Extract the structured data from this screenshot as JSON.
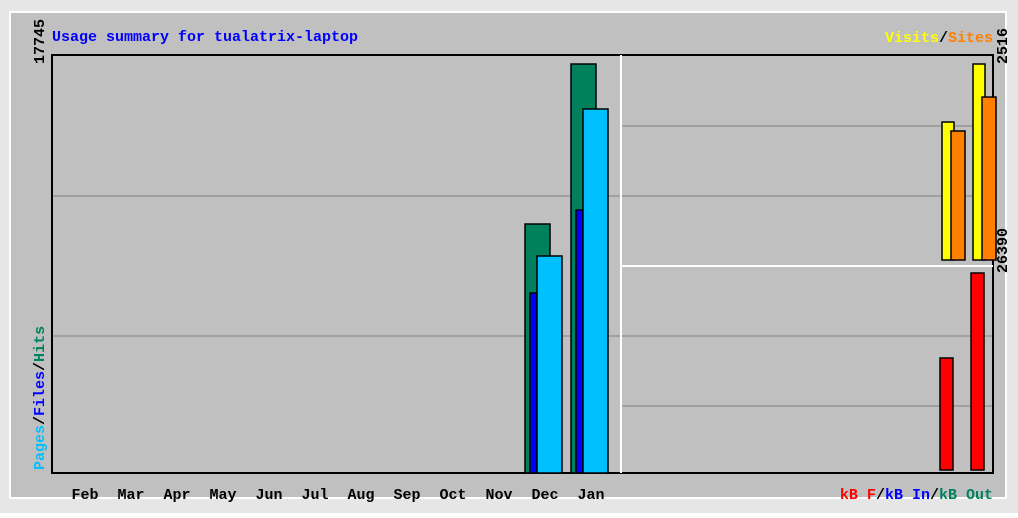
{
  "chart_data": [
    {
      "type": "bar",
      "title": "Usage summary for tualatrix-laptop",
      "categories": [
        "Feb",
        "Mar",
        "Apr",
        "May",
        "Jun",
        "Jul",
        "Aug",
        "Sep",
        "Oct",
        "Nov",
        "Dec",
        "Jan"
      ],
      "ylim": [
        0,
        17745
      ],
      "yticks": [
        17745
      ],
      "series": [
        {
          "name": "Hits",
          "color": "#00805c",
          "values": [
            0,
            0,
            0,
            0,
            0,
            0,
            0,
            0,
            0,
            0,
            10803,
            17745
          ]
        },
        {
          "name": "Files",
          "color": "#0000ff",
          "values": [
            0,
            0,
            0,
            0,
            0,
            0,
            0,
            0,
            0,
            0,
            7810,
            11411
          ]
        },
        {
          "name": "Pages",
          "color": "#00c0ff",
          "values": [
            0,
            0,
            0,
            0,
            0,
            0,
            0,
            0,
            0,
            0,
            9415,
            15793
          ]
        }
      ]
    },
    {
      "type": "bar",
      "ylim": [
        0,
        2516
      ],
      "yticks": [
        2516
      ],
      "series": [
        {
          "name": "Visits",
          "color": "#ffff00",
          "values": [
            0,
            0,
            0,
            0,
            0,
            0,
            0,
            0,
            0,
            0,
            1771,
            2516
          ]
        },
        {
          "name": "Sites",
          "color": "#ff8000",
          "values": [
            0,
            0,
            0,
            0,
            0,
            0,
            0,
            0,
            0,
            0,
            1656,
            2092
          ]
        }
      ]
    },
    {
      "type": "bar",
      "ylim": [
        0,
        26390
      ],
      "yticks": [
        26390
      ],
      "series": [
        {
          "name": "kB F",
          "color": "#ff0000",
          "values": [
            0,
            0,
            0,
            0,
            0,
            0,
            0,
            0,
            0,
            0,
            15003,
            26390
          ]
        },
        {
          "name": "kB In",
          "color": "#0000ff",
          "values": [
            0,
            0,
            0,
            0,
            0,
            0,
            0,
            0,
            0,
            0,
            0,
            0
          ]
        },
        {
          "name": "kB Out",
          "color": "#00805c",
          "values": [
            0,
            0,
            0,
            0,
            0,
            0,
            0,
            0,
            0,
            0,
            0,
            0
          ]
        }
      ]
    }
  ]
}
